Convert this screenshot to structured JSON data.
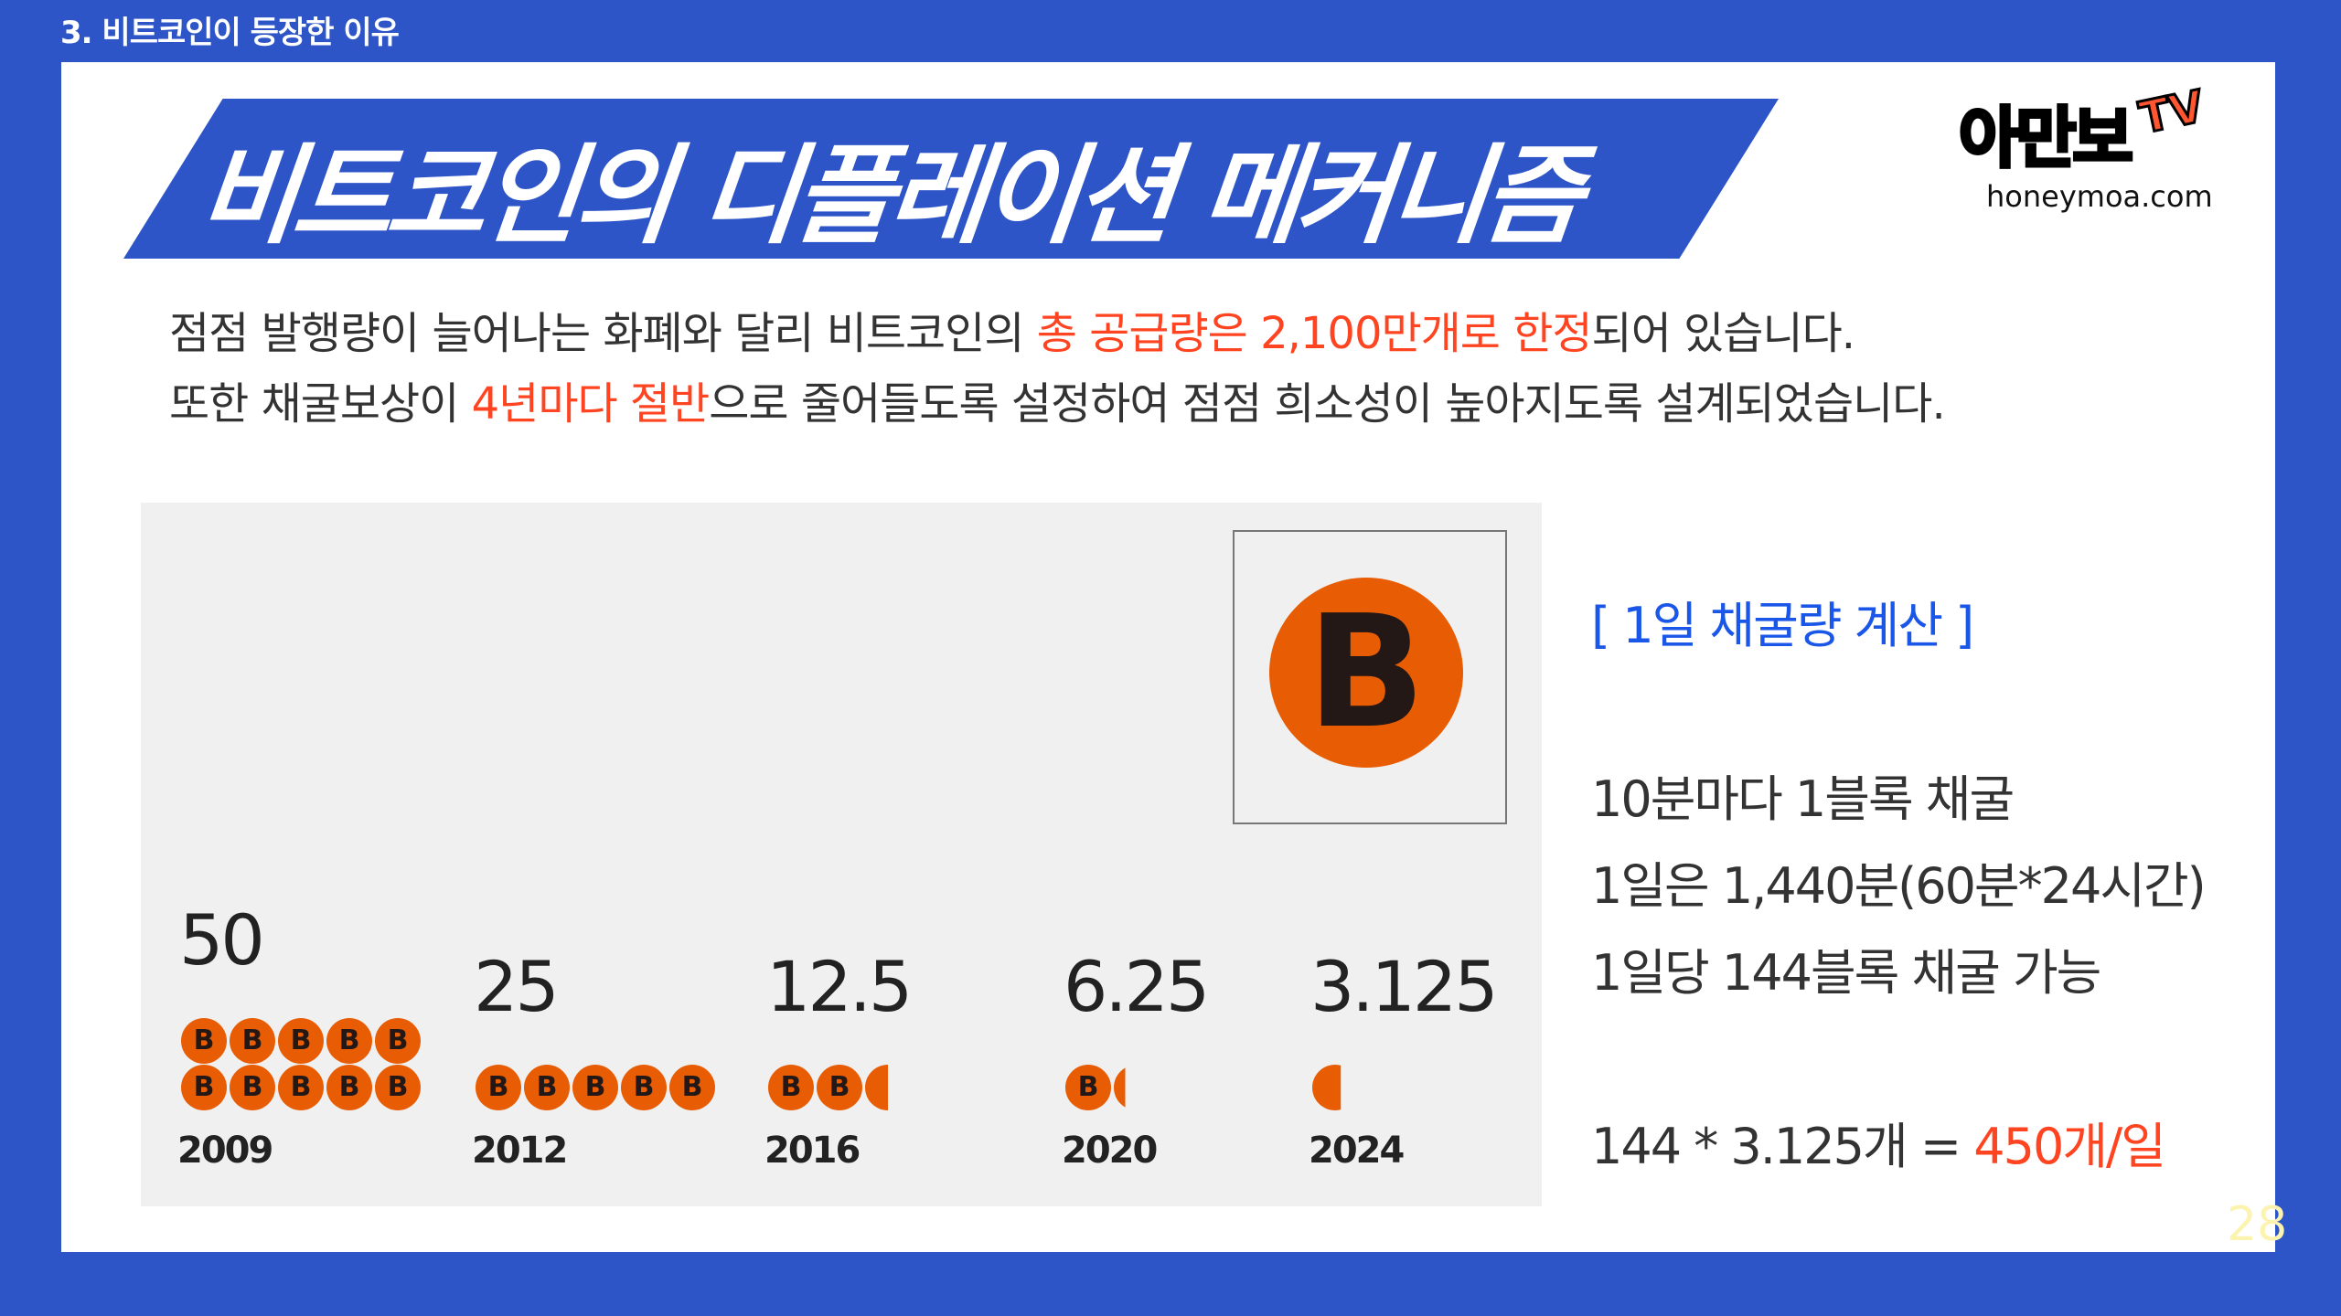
{
  "section_header": "3. 비트코인이 등장한 이유",
  "title": "비트코인의 디플레이션 메커니즘",
  "logo": {
    "text": "아만보",
    "tv": "TV",
    "url": "honeymoa.com"
  },
  "subtitle": {
    "line1": {
      "pre": "점점 발행량이 늘어나는 화폐와 달리 비트코인의 ",
      "highlight": "총 공급량은 2,100만개로 한정",
      "post": "되어 있습니다."
    },
    "line2": {
      "pre": "또한 채굴보상이 ",
      "highlight": "4년마다 절반",
      "post": "으로 줄어들도록 설정하여 점점 희소성이 높아지도록 설계되었습니다."
    }
  },
  "chart_data": {
    "type": "bar",
    "categories": [
      "2009",
      "2012",
      "2016",
      "2020",
      "2024"
    ],
    "values": [
      50,
      25,
      12.5,
      6.25,
      3.125
    ],
    "value_labels": [
      "50",
      "25",
      "12.5",
      "6.25",
      "3.125"
    ],
    "unit_icon": "bitcoin-coin-icon",
    "coin_value": 5,
    "color": "#e85d04"
  },
  "calc": {
    "heading": "[ 1일 채굴량 계산 ]",
    "lines": [
      "10분마다 1블록 채굴",
      "1일은 1,440분(60분*24시간)",
      "1일당 144블록 채굴 가능"
    ],
    "formula": "144 * 3.125개 = ",
    "result": "450개/일"
  },
  "page_number": "28",
  "colors": {
    "brand_blue": "#2d55c8",
    "highlight_red": "#ff4422",
    "calc_heading": "#1a56e8",
    "bitcoin_orange": "#e85d04"
  }
}
